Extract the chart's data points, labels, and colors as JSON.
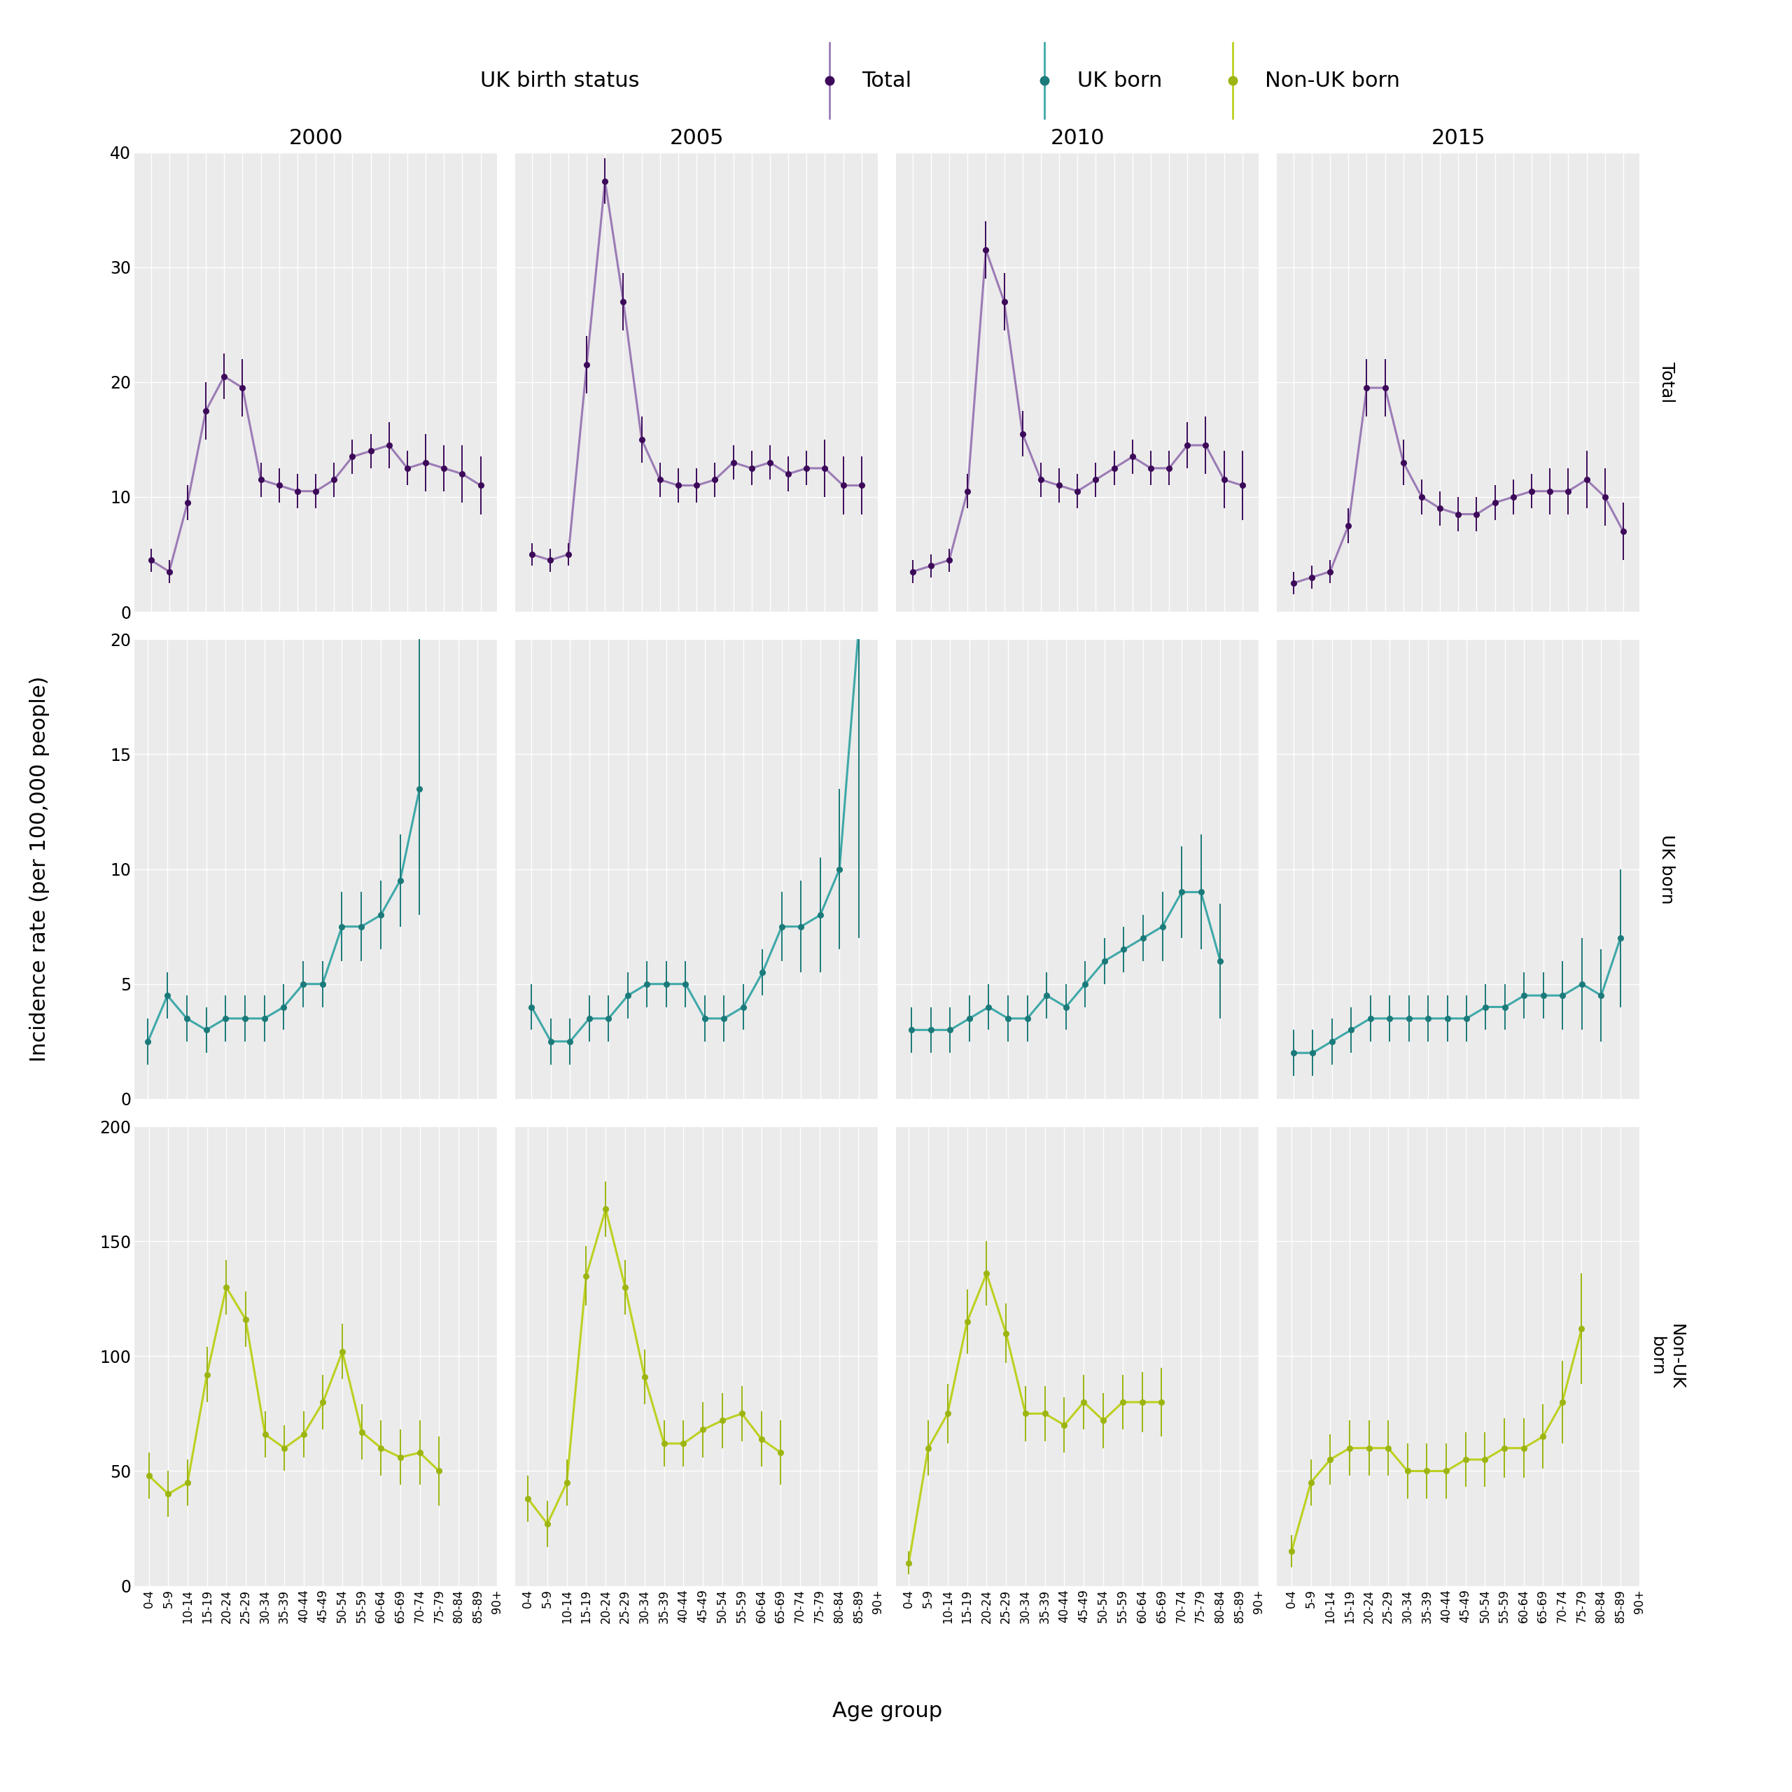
{
  "age_groups": [
    "0-4",
    "5-9",
    "10-14",
    "15-19",
    "20-24",
    "25-29",
    "30-34",
    "35-39",
    "40-44",
    "45-49",
    "50-54",
    "55-59",
    "60-64",
    "65-69",
    "70-74",
    "75-79",
    "80-84",
    "85-89",
    "90+"
  ],
  "years": [
    2000,
    2005,
    2010,
    2015
  ],
  "colors": {
    "Total": "#3D0A5A",
    "Total_line": "#9B7BB5",
    "UK_born": "#1B7A7A",
    "UK_born_line": "#3FA8A8",
    "NonUK_born": "#9DB510",
    "NonUK_born_line": "#BDD020"
  },
  "total": {
    "2000": {
      "values": [
        4.5,
        3.5,
        9.5,
        17.5,
        20.5,
        19.5,
        11.5,
        11.0,
        10.5,
        10.5,
        11.5,
        13.5,
        14.0,
        14.5,
        12.5,
        13.0,
        12.5,
        12.0,
        11.0
      ],
      "ci_low": [
        3.5,
        2.5,
        8.0,
        15.0,
        18.5,
        17.0,
        10.0,
        9.5,
        9.0,
        9.0,
        10.0,
        12.0,
        12.5,
        12.5,
        11.0,
        10.5,
        10.5,
        9.5,
        8.5
      ],
      "ci_high": [
        5.5,
        4.5,
        11.0,
        20.0,
        22.5,
        22.0,
        13.0,
        12.5,
        12.0,
        12.0,
        13.0,
        15.0,
        15.5,
        16.5,
        14.0,
        15.5,
        14.5,
        14.5,
        13.5
      ]
    },
    "2005": {
      "values": [
        5.0,
        4.5,
        5.0,
        21.5,
        37.5,
        27.0,
        15.0,
        11.5,
        11.0,
        11.0,
        11.5,
        13.0,
        12.5,
        13.0,
        12.0,
        12.5,
        12.5,
        11.0,
        11.0
      ],
      "ci_low": [
        4.0,
        3.5,
        4.0,
        19.0,
        35.5,
        24.5,
        13.0,
        10.0,
        9.5,
        9.5,
        10.0,
        11.5,
        11.0,
        11.5,
        10.5,
        11.0,
        10.0,
        8.5,
        8.5
      ],
      "ci_high": [
        6.0,
        5.5,
        6.0,
        24.0,
        39.5,
        29.5,
        17.0,
        13.0,
        12.5,
        12.5,
        13.0,
        14.5,
        14.0,
        14.5,
        13.5,
        14.0,
        15.0,
        13.5,
        13.5
      ]
    },
    "2010": {
      "values": [
        3.5,
        4.0,
        4.5,
        10.5,
        31.5,
        27.0,
        15.5,
        11.5,
        11.0,
        10.5,
        11.5,
        12.5,
        13.5,
        12.5,
        12.5,
        14.5,
        14.5,
        11.5,
        11.0
      ],
      "ci_low": [
        2.5,
        3.0,
        3.5,
        9.0,
        29.0,
        24.5,
        13.5,
        10.0,
        9.5,
        9.0,
        10.0,
        11.0,
        12.0,
        11.0,
        11.0,
        12.5,
        12.0,
        9.0,
        8.0
      ],
      "ci_high": [
        4.5,
        5.0,
        5.5,
        12.0,
        34.0,
        29.5,
        17.5,
        13.0,
        12.5,
        12.0,
        13.0,
        14.0,
        15.0,
        14.0,
        14.0,
        16.5,
        17.0,
        14.0,
        14.0
      ]
    },
    "2015": {
      "values": [
        2.5,
        3.0,
        3.5,
        7.5,
        19.5,
        19.5,
        13.0,
        10.0,
        9.0,
        8.5,
        8.5,
        9.5,
        10.0,
        10.5,
        10.5,
        10.5,
        11.5,
        10.0,
        7.0
      ],
      "ci_low": [
        1.5,
        2.0,
        2.5,
        6.0,
        17.0,
        17.0,
        11.0,
        8.5,
        7.5,
        7.0,
        7.0,
        8.0,
        8.5,
        9.0,
        8.5,
        8.5,
        9.0,
        7.5,
        4.5
      ],
      "ci_high": [
        3.5,
        4.0,
        4.5,
        9.0,
        22.0,
        22.0,
        15.0,
        11.5,
        10.5,
        10.0,
        10.0,
        11.0,
        11.5,
        12.0,
        12.5,
        12.5,
        14.0,
        12.5,
        9.5
      ]
    }
  },
  "uk_born": {
    "2000": {
      "values": [
        2.5,
        4.5,
        3.5,
        3.0,
        3.5,
        3.5,
        3.5,
        4.0,
        5.0,
        5.0,
        7.5,
        7.5,
        8.0,
        9.5,
        13.5,
        null,
        null,
        null,
        null
      ],
      "ci_low": [
        1.5,
        3.5,
        2.5,
        2.0,
        2.5,
        2.5,
        2.5,
        3.0,
        4.0,
        4.0,
        6.0,
        6.0,
        6.5,
        7.5,
        8.0,
        null,
        null,
        null,
        null
      ],
      "ci_high": [
        3.5,
        5.5,
        4.5,
        4.0,
        4.5,
        4.5,
        4.5,
        5.0,
        6.0,
        6.0,
        9.0,
        9.0,
        9.5,
        11.5,
        21.0,
        null,
        null,
        null,
        null
      ]
    },
    "2005": {
      "values": [
        4.0,
        2.5,
        2.5,
        3.5,
        3.5,
        4.5,
        5.0,
        5.0,
        5.0,
        3.5,
        3.5,
        4.0,
        5.5,
        7.5,
        7.5,
        8.0,
        10.0,
        20.5,
        null
      ],
      "ci_low": [
        3.0,
        1.5,
        1.5,
        2.5,
        2.5,
        3.5,
        4.0,
        4.0,
        4.0,
        2.5,
        2.5,
        3.0,
        4.5,
        6.0,
        5.5,
        5.5,
        6.5,
        7.0,
        null
      ],
      "ci_high": [
        5.0,
        3.5,
        3.5,
        4.5,
        4.5,
        5.5,
        6.0,
        6.0,
        6.0,
        4.5,
        4.5,
        5.0,
        6.5,
        9.0,
        9.5,
        10.5,
        13.5,
        34.0,
        null
      ]
    },
    "2010": {
      "values": [
        3.0,
        3.0,
        3.0,
        3.5,
        4.0,
        3.5,
        3.5,
        4.5,
        4.0,
        5.0,
        6.0,
        6.5,
        7.0,
        7.5,
        9.0,
        9.0,
        6.0,
        null,
        null
      ],
      "ci_low": [
        2.0,
        2.0,
        2.0,
        2.5,
        3.0,
        2.5,
        2.5,
        3.5,
        3.0,
        4.0,
        5.0,
        5.5,
        6.0,
        6.0,
        7.0,
        6.5,
        3.5,
        null,
        null
      ],
      "ci_high": [
        4.0,
        4.0,
        4.0,
        4.5,
        5.0,
        4.5,
        4.5,
        5.5,
        5.0,
        6.0,
        7.0,
        7.5,
        8.0,
        9.0,
        11.0,
        11.5,
        8.5,
        null,
        null
      ]
    },
    "2015": {
      "values": [
        2.0,
        2.0,
        2.5,
        3.0,
        3.5,
        3.5,
        3.5,
        3.5,
        3.5,
        3.5,
        4.0,
        4.0,
        4.5,
        4.5,
        4.5,
        5.0,
        4.5,
        7.0,
        null
      ],
      "ci_low": [
        1.0,
        1.0,
        1.5,
        2.0,
        2.5,
        2.5,
        2.5,
        2.5,
        2.5,
        2.5,
        3.0,
        3.0,
        3.5,
        3.5,
        3.0,
        3.0,
        2.5,
        4.0,
        null
      ],
      "ci_high": [
        3.0,
        3.0,
        3.5,
        4.0,
        4.5,
        4.5,
        4.5,
        4.5,
        4.5,
        4.5,
        5.0,
        5.0,
        5.5,
        5.5,
        6.0,
        7.0,
        6.5,
        10.0,
        null
      ]
    }
  },
  "nonuk_born": {
    "2000": {
      "values": [
        48.0,
        40.0,
        45.0,
        92.0,
        130.0,
        116.0,
        66.0,
        60.0,
        66.0,
        80.0,
        102.0,
        67.0,
        60.0,
        56.0,
        58.0,
        50.0,
        null,
        null,
        null
      ],
      "ci_low": [
        38.0,
        30.0,
        35.0,
        80.0,
        118.0,
        104.0,
        56.0,
        50.0,
        56.0,
        68.0,
        90.0,
        55.0,
        48.0,
        44.0,
        44.0,
        35.0,
        null,
        null,
        null
      ],
      "ci_high": [
        58.0,
        50.0,
        55.0,
        104.0,
        142.0,
        128.0,
        76.0,
        70.0,
        76.0,
        92.0,
        114.0,
        79.0,
        72.0,
        68.0,
        72.0,
        65.0,
        null,
        null,
        null
      ]
    },
    "2005": {
      "values": [
        38.0,
        27.0,
        45.0,
        135.0,
        164.0,
        130.0,
        91.0,
        62.0,
        62.0,
        68.0,
        72.0,
        75.0,
        64.0,
        58.0,
        null,
        null,
        null,
        null,
        null
      ],
      "ci_low": [
        28.0,
        17.0,
        35.0,
        122.0,
        152.0,
        118.0,
        79.0,
        52.0,
        52.0,
        56.0,
        60.0,
        63.0,
        52.0,
        44.0,
        null,
        null,
        null,
        null,
        null
      ],
      "ci_high": [
        48.0,
        37.0,
        55.0,
        148.0,
        176.0,
        142.0,
        103.0,
        72.0,
        72.0,
        80.0,
        84.0,
        87.0,
        76.0,
        72.0,
        null,
        null,
        null,
        null,
        null
      ]
    },
    "2010": {
      "values": [
        10.0,
        60.0,
        75.0,
        115.0,
        136.0,
        110.0,
        75.0,
        75.0,
        70.0,
        80.0,
        72.0,
        80.0,
        80.0,
        80.0,
        null,
        null,
        null,
        null,
        null
      ],
      "ci_low": [
        5.0,
        48.0,
        62.0,
        101.0,
        122.0,
        97.0,
        63.0,
        63.0,
        58.0,
        68.0,
        60.0,
        68.0,
        67.0,
        65.0,
        null,
        null,
        null,
        null,
        null
      ],
      "ci_high": [
        15.0,
        72.0,
        88.0,
        129.0,
        150.0,
        123.0,
        87.0,
        87.0,
        82.0,
        92.0,
        84.0,
        92.0,
        93.0,
        95.0,
        null,
        null,
        null,
        null,
        null
      ]
    },
    "2015": {
      "values": [
        15.0,
        45.0,
        55.0,
        60.0,
        60.0,
        60.0,
        50.0,
        50.0,
        50.0,
        55.0,
        55.0,
        60.0,
        60.0,
        65.0,
        80.0,
        112.0,
        null,
        null,
        null
      ],
      "ci_low": [
        8.0,
        35.0,
        44.0,
        48.0,
        48.0,
        48.0,
        38.0,
        38.0,
        38.0,
        43.0,
        43.0,
        47.0,
        47.0,
        51.0,
        62.0,
        88.0,
        null,
        null,
        null
      ],
      "ci_high": [
        22.0,
        55.0,
        66.0,
        72.0,
        72.0,
        72.0,
        62.0,
        62.0,
        62.0,
        67.0,
        67.0,
        73.0,
        73.0,
        79.0,
        98.0,
        136.0,
        null,
        null,
        null
      ]
    }
  },
  "ylims": {
    "Total": [
      0,
      40
    ],
    "UK_born": [
      0,
      20
    ],
    "NonUK_born": [
      0,
      200
    ]
  },
  "yticks": {
    "Total": [
      0,
      10,
      20,
      30,
      40
    ],
    "UK_born": [
      0,
      5,
      10,
      15,
      20
    ],
    "NonUK_born": [
      0,
      50,
      100,
      150,
      200
    ]
  },
  "panel_bg": "#EBEBEB",
  "grid_color": "#FFFFFF",
  "fig_bg": "#FFFFFF",
  "row_label_texts": [
    "Total",
    "UK born",
    "Non-UK\nborn"
  ]
}
